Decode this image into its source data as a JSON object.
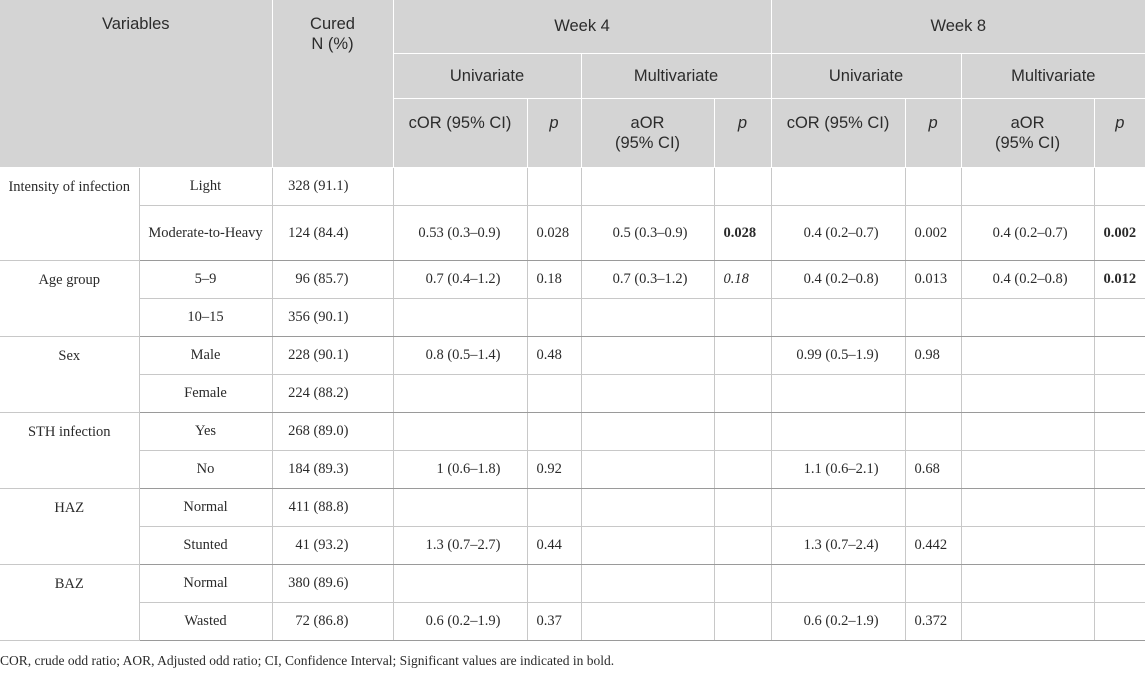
{
  "header": {
    "variables": "Variables",
    "cured_line1": "Cured",
    "cured_line2": "N (%)",
    "week4": "Week 4",
    "week8": "Week 8",
    "univariate": "Univariate",
    "multivariate": "Multivariate",
    "cor_ci": "cOR (95% CI)",
    "aor_line1": "aOR",
    "aor_line2": "(95% CI)",
    "p": "p"
  },
  "groups": {
    "intensity": {
      "variable": "Intensity of infection",
      "rows": [
        {
          "level": "Light",
          "cured": "328 (91.1)",
          "w4_cor": "",
          "w4_cor_p": "",
          "w4_aor": "",
          "w4_aor_p": "",
          "w8_cor": "",
          "w8_cor_p": "",
          "w8_aor": "",
          "w8_aor_p": ""
        },
        {
          "level": "Moderate-to-Heavy",
          "cured": "124 (84.4)",
          "w4_cor": "0.53 (0.3–0.9)",
          "w4_cor_p": "0.028",
          "w4_aor": "0.5 (0.3–0.9)",
          "w4_aor_p": "0.028",
          "w8_cor": "0.4 (0.2–0.7)",
          "w8_cor_p": "0.002",
          "w8_aor": "0.4 (0.2–0.7)",
          "w8_aor_p": "0.002"
        }
      ]
    },
    "age": {
      "variable": "Age group",
      "rows": [
        {
          "level": "5–9",
          "cured": "96 (85.7)",
          "w4_cor": "0.7 (0.4–1.2)",
          "w4_cor_p": "0.18",
          "w4_aor": "0.7 (0.3–1.2)",
          "w4_aor_p": "0.18",
          "w8_cor": "0.4 (0.2–0.8)",
          "w8_cor_p": "0.013",
          "w8_aor": "0.4 (0.2–0.8)",
          "w8_aor_p": "0.012"
        },
        {
          "level": "10–15",
          "cured": "356 (90.1)",
          "w4_cor": "",
          "w4_cor_p": "",
          "w4_aor": "",
          "w4_aor_p": "",
          "w8_cor": "",
          "w8_cor_p": "",
          "w8_aor": "",
          "w8_aor_p": ""
        }
      ]
    },
    "sex": {
      "variable": "Sex",
      "rows": [
        {
          "level": "Male",
          "cured": "228 (90.1)",
          "w4_cor": "0.8 (0.5–1.4)",
          "w4_cor_p": "0.48",
          "w4_aor": "",
          "w4_aor_p": "",
          "w8_cor": "0.99 (0.5–1.9)",
          "w8_cor_p": "0.98",
          "w8_aor": "",
          "w8_aor_p": ""
        },
        {
          "level": "Female",
          "cured": "224 (88.2)",
          "w4_cor": "",
          "w4_cor_p": "",
          "w4_aor": "",
          "w4_aor_p": "",
          "w8_cor": "",
          "w8_cor_p": "",
          "w8_aor": "",
          "w8_aor_p": ""
        }
      ]
    },
    "sth": {
      "variable": "STH infection",
      "rows": [
        {
          "level": "Yes",
          "cured": "268 (89.0)",
          "w4_cor": "",
          "w4_cor_p": "",
          "w4_aor": "",
          "w4_aor_p": "",
          "w8_cor": "",
          "w8_cor_p": "",
          "w8_aor": "",
          "w8_aor_p": ""
        },
        {
          "level": "No",
          "cured": "184 (89.3)",
          "w4_cor": "1 (0.6–1.8)",
          "w4_cor_p": "0.92",
          "w4_aor": "",
          "w4_aor_p": "",
          "w8_cor": "1.1 (0.6–2.1)",
          "w8_cor_p": "0.68",
          "w8_aor": "",
          "w8_aor_p": ""
        }
      ]
    },
    "haz": {
      "variable": "HAZ",
      "rows": [
        {
          "level": "Normal",
          "cured": "411 (88.8)",
          "w4_cor": "",
          "w4_cor_p": "",
          "w4_aor": "",
          "w4_aor_p": "",
          "w8_cor": "",
          "w8_cor_p": "",
          "w8_aor": "",
          "w8_aor_p": ""
        },
        {
          "level": "Stunted",
          "cured": "41 (93.2)",
          "w4_cor": "1.3 (0.7–2.7)",
          "w4_cor_p": "0.44",
          "w4_aor": "",
          "w4_aor_p": "",
          "w8_cor": "1.3 (0.7–2.4)",
          "w8_cor_p": "0.442",
          "w8_aor": "",
          "w8_aor_p": ""
        }
      ]
    },
    "baz": {
      "variable": "BAZ",
      "rows": [
        {
          "level": "Normal",
          "cured": "380 (89.6)",
          "w4_cor": "",
          "w4_cor_p": "",
          "w4_aor": "",
          "w4_aor_p": "",
          "w8_cor": "",
          "w8_cor_p": "",
          "w8_aor": "",
          "w8_aor_p": ""
        },
        {
          "level": "Wasted",
          "cured": "72 (86.8)",
          "w4_cor": "0.6 (0.2–1.9)",
          "w4_cor_p": "0.37",
          "w4_aor": "",
          "w4_aor_p": "",
          "w8_cor": "0.6 (0.2–1.9)",
          "w8_cor_p": "0.372",
          "w8_aor": "",
          "w8_aor_p": ""
        }
      ]
    }
  },
  "footnote": "COR, crude odd ratio; AOR, Adjusted odd ratio; CI, Confidence Interval; Significant values are indicated in bold."
}
